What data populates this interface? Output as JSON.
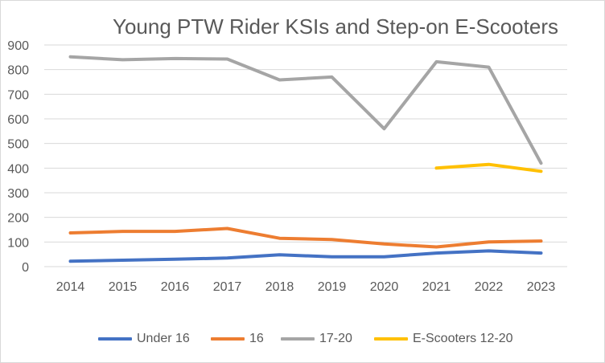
{
  "chart_data": {
    "type": "line",
    "title": "Young PTW Rider KSIs and Step-on E-Scooters",
    "xlabel": "",
    "ylabel": "",
    "categories": [
      "2014",
      "2015",
      "2016",
      "2017",
      "2018",
      "2019",
      "2020",
      "2021",
      "2022",
      "2023"
    ],
    "ylim": [
      0,
      900
    ],
    "yticks": [
      0,
      100,
      200,
      300,
      400,
      500,
      600,
      700,
      800,
      900
    ],
    "grid": true,
    "legend_position": "bottom",
    "series": [
      {
        "name": "Under 16",
        "color": "#4472C4",
        "values": [
          22,
          26,
          30,
          35,
          48,
          40,
          40,
          55,
          64,
          55
        ]
      },
      {
        "name": "16",
        "color": "#ED7D31",
        "values": [
          137,
          143,
          143,
          155,
          115,
          110,
          92,
          80,
          100,
          104
        ]
      },
      {
        "name": "17-20",
        "color": "#A5A5A5",
        "values": [
          852,
          840,
          845,
          843,
          758,
          770,
          560,
          832,
          810,
          420
        ]
      },
      {
        "name": "E-Scooters 12-20",
        "color": "#FFC000",
        "values": [
          null,
          null,
          null,
          null,
          null,
          null,
          null,
          400,
          415,
          387
        ]
      }
    ]
  }
}
